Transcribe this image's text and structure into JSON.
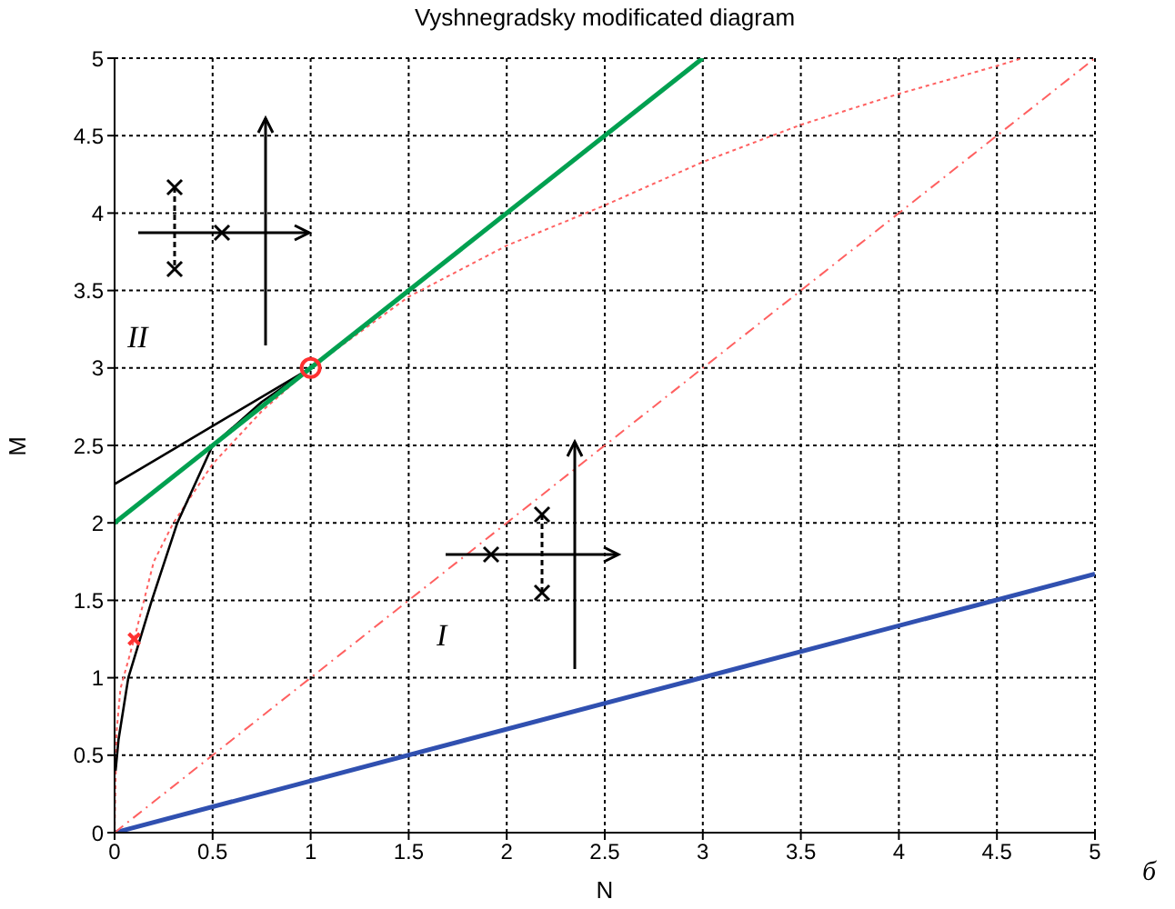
{
  "chart_data": {
    "type": "line",
    "title": "Vyshnegradsky modificated diagram",
    "xlabel": "N",
    "ylabel": "M",
    "xlim": [
      0,
      5
    ],
    "ylim": [
      0,
      5
    ],
    "xticks": [
      0,
      0.5,
      1,
      1.5,
      2,
      2.5,
      3,
      3.5,
      4,
      4.5,
      5
    ],
    "yticks": [
      0,
      0.5,
      1,
      1.5,
      2,
      2.5,
      3,
      3.5,
      4,
      4.5,
      5
    ],
    "grid": true,
    "annotations": [
      "II",
      "I",
      "б"
    ],
    "series": [
      {
        "color": "#3050b0",
        "x": [
          0,
          5
        ],
        "values": [
          0,
          1.67
        ]
      },
      {
        "color": "#ff6060",
        "line_style": "dashed",
        "x": [
          0,
          5
        ],
        "values": [
          0,
          5
        ]
      },
      {
        "color": "#ff6060",
        "line_style": "dotted",
        "x": [
          0,
          0.01,
          0.03,
          0.1,
          0.2,
          0.3,
          0.5,
          0.75,
          1,
          1.5,
          2,
          2.5,
          3,
          3.5,
          4,
          4.5,
          4.63
        ],
        "values": [
          0,
          0.65,
          0.93,
          1.25,
          1.75,
          2,
          2.38,
          2.72,
          3,
          3.46,
          3.79,
          4.05,
          4.33,
          4.57,
          4.77,
          4.95,
          5
        ]
      },
      {
        "color": "#000000",
        "x": [
          0.005,
          0.02,
          0.07,
          0.19,
          0.32,
          0.5,
          0.75,
          1
        ],
        "values": [
          0.4,
          0.6,
          1,
          1.5,
          2,
          2.5,
          2.78,
          3
        ]
      },
      {
        "color": "#000000",
        "x": [
          0,
          1
        ],
        "values": [
          2.25,
          3
        ]
      },
      {
        "color": "#00a050",
        "x": [
          0,
          3
        ],
        "values": [
          2,
          5
        ]
      },
      {
        "type": "scatter",
        "marker": "cross",
        "color": "#ff3030",
        "x": [
          0.1
        ],
        "values": [
          1.25
        ]
      },
      {
        "type": "scatter",
        "marker": "circle",
        "color": "#ff3030",
        "x": [
          1
        ],
        "values": [
          3
        ]
      }
    ]
  }
}
